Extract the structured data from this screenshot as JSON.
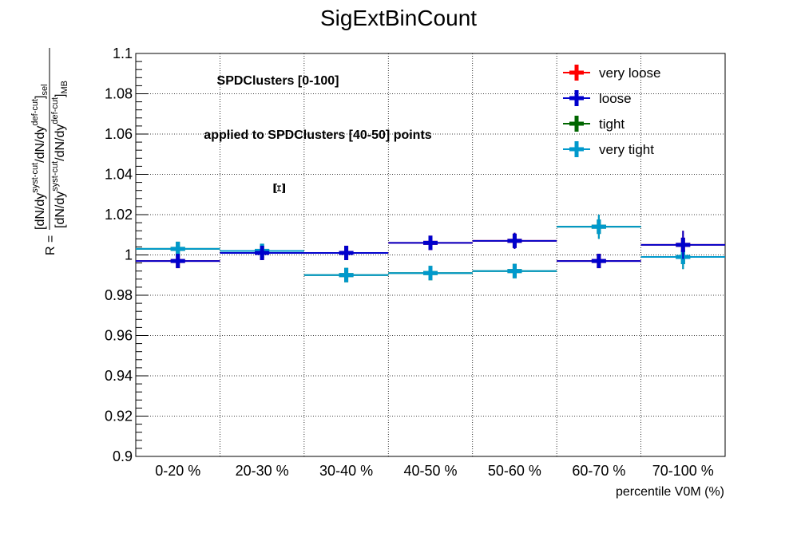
{
  "chart_data": {
    "type": "scatter",
    "title": "SigExtBinCount",
    "xlabel": "percentile V0M (%)",
    "ylabel": {
      "prefix": "R =",
      "numerator": {
        "a": "[dN/dy",
        "a_sup": "syst-cut",
        "b": "/dN/dy",
        "b_sup": "def-cut",
        "c": "]",
        "c_sub": "sel"
      },
      "denominator": {
        "a": "[dN/dy",
        "a_sup": "syst-cut",
        "b": "/dN/dy",
        "b_sup": "def-cut",
        "c": "]",
        "c_sub": "MB"
      }
    },
    "categories": [
      "0-20 %",
      "20-30 %",
      "30-40 %",
      "40-50 %",
      "50-60 %",
      "60-70 %",
      "70-100 %"
    ],
    "ylim": [
      0.9,
      1.1
    ],
    "yticks": [
      "0.9",
      "0.92",
      "0.94",
      "0.96",
      "0.98",
      "1",
      "1.02",
      "1.04",
      "1.06",
      "1.08",
      "1.1"
    ],
    "grid": true,
    "legend_position": "top-right",
    "annotations": [
      "SPDClusters [0-100]",
      "applied to SPDClusters [40-50] points",
      "Ξ"
    ],
    "series": [
      {
        "name": "very loose",
        "color": "#ff0000",
        "values": [
          0.997,
          1.001,
          1.001,
          1.006,
          1.007,
          0.997,
          1.005
        ],
        "errors": [
          0.003,
          0.003,
          0.003,
          0.003,
          0.004,
          0.003,
          0.007
        ]
      },
      {
        "name": "loose",
        "color": "#0000cc",
        "values": [
          0.997,
          1.001,
          1.001,
          1.006,
          1.007,
          0.997,
          1.005
        ],
        "errors": [
          0.003,
          0.003,
          0.003,
          0.003,
          0.004,
          0.003,
          0.007
        ]
      },
      {
        "name": "tight",
        "color": "#006600",
        "values": [
          1.003,
          1.002,
          0.99,
          0.991,
          0.992,
          1.014,
          0.999
        ],
        "errors": [
          0.003,
          0.003,
          0.003,
          0.003,
          0.003,
          0.006,
          0.006
        ]
      },
      {
        "name": "very tight",
        "color": "#0099cc",
        "values": [
          1.003,
          1.002,
          0.99,
          0.991,
          0.992,
          1.014,
          0.999
        ],
        "errors": [
          0.003,
          0.003,
          0.003,
          0.003,
          0.003,
          0.006,
          0.006
        ]
      }
    ]
  }
}
